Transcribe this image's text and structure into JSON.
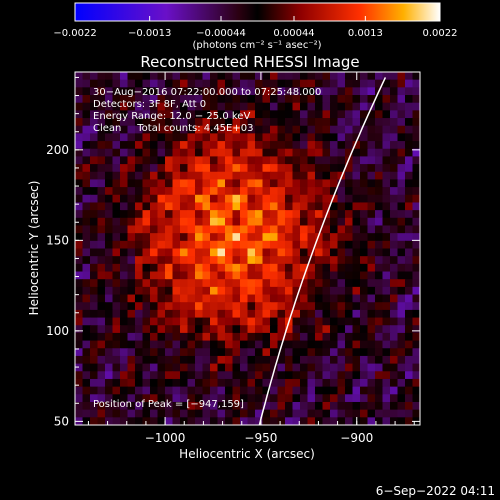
{
  "chart_data": {
    "type": "heatmap",
    "title": "Reconstructed RHESSI Image",
    "xlabel": "Heliocentric X (arcsec)",
    "ylabel": "Heliocentric Y (arcsec)",
    "xlim": [
      -1047,
      -867
    ],
    "ylim": [
      48,
      243
    ],
    "xticks": [
      -1000,
      -950,
      -900
    ],
    "xtick_labels": [
      "−1000",
      "−950",
      "−900"
    ],
    "yticks": [
      50,
      100,
      150,
      200
    ],
    "ytick_labels": [
      "50",
      "100",
      "150",
      "200"
    ],
    "colorbar": {
      "colormap": "hot",
      "range": [
        -0.0022,
        0.0022
      ],
      "ticks": [
        -0.0022,
        -0.0013,
        -0.00044,
        0.00044,
        0.0013,
        0.0022
      ],
      "tick_labels": [
        "−0.0022",
        "−0.0013",
        "−0.00044",
        "0.00044",
        "0.0013",
        "0.0022"
      ],
      "units": "(photons cm⁻² s⁻¹ asec⁻²)"
    },
    "annotations": {
      "time_range": "30−Aug−2016 07:22:00.000 to 07:25:48.000",
      "detectors": "Detectors: 3F 8F, Att 0",
      "energy_range": "Energy Range: 12.0 − 25.0 keV",
      "method_counts": "Clean     Total counts: 4.45E+03",
      "peak": "Position of Peak = [−947,159]"
    },
    "peak_position": [
      -947,
      159
    ],
    "limb": {
      "type": "solar-limb-arc"
    },
    "grid": false
  },
  "footer": {
    "timestamp": "6−Sep−2022 04:11"
  },
  "colors": {
    "background": "#000000",
    "text": "#ffffff",
    "limb": "#ffffff"
  }
}
